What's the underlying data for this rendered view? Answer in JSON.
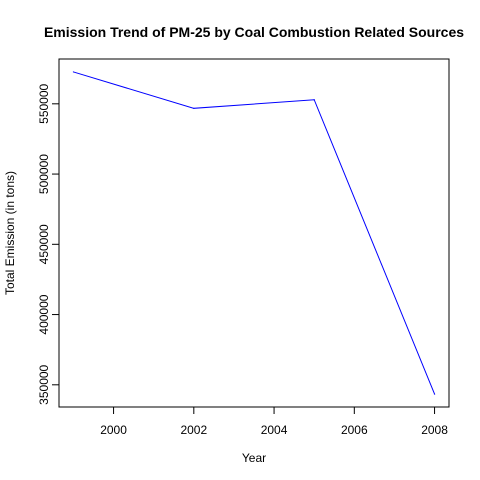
{
  "chart_data": {
    "type": "line",
    "title": "Emission Trend of PM-25 by Coal Combustion Related Sources",
    "xlabel": "Year",
    "ylabel": "Total Emission (in tons)",
    "x": [
      1999,
      2002,
      2005,
      2008
    ],
    "series": [
      {
        "values": [
          572700,
          546800,
          552900,
          343400
        ],
        "color": "#0000ff"
      }
    ],
    "xlim": [
      1998.64,
      2008.36
    ],
    "ylim": [
      334200,
      581900
    ],
    "xticks": [
      2000,
      2002,
      2004,
      2006,
      2008
    ],
    "yticks": [
      350000,
      400000,
      450000,
      500000,
      550000
    ],
    "xtick_labels": [
      "2000",
      "2002",
      "2004",
      "2006",
      "2008"
    ],
    "ytick_labels": [
      "350000",
      "400000",
      "450000",
      "500000",
      "550000"
    ],
    "grid": false,
    "box": true
  }
}
